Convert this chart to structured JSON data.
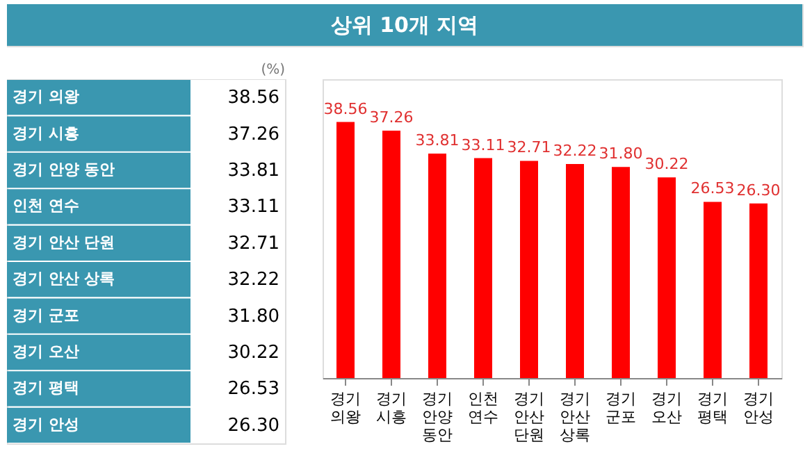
{
  "chart_data": {
    "type": "bar",
    "title": "상위 10개 지역",
    "ylabel": "(%)",
    "categories": [
      "경기 의왕",
      "경기 시흥",
      "경기 안양 동안",
      "인천 연수",
      "경기 안산 단원",
      "경기 안산 상록",
      "경기 군포",
      "경기 오산",
      "경기 평택",
      "경기 안성"
    ],
    "values": [
      38.56,
      37.26,
      33.81,
      33.11,
      32.71,
      32.22,
      31.8,
      30.22,
      26.53,
      26.3
    ],
    "value_labels": [
      "38.56",
      "37.26",
      "33.81",
      "33.11",
      "32.71",
      "32.22",
      "31.80",
      "30.22",
      "26.53",
      "26.30"
    ],
    "color": "#ff0000",
    "ylim": [
      0,
      45
    ],
    "tick_labels": "x"
  }
}
